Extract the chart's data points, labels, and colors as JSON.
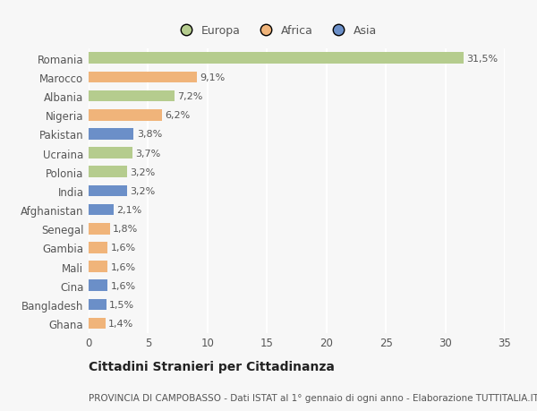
{
  "countries": [
    "Romania",
    "Marocco",
    "Albania",
    "Nigeria",
    "Pakistan",
    "Ucraina",
    "Polonia",
    "India",
    "Afghanistan",
    "Senegal",
    "Gambia",
    "Mali",
    "Cina",
    "Bangladesh",
    "Ghana"
  ],
  "values": [
    31.5,
    9.1,
    7.2,
    6.2,
    3.8,
    3.7,
    3.2,
    3.2,
    2.1,
    1.8,
    1.6,
    1.6,
    1.6,
    1.5,
    1.4
  ],
  "labels": [
    "31,5%",
    "9,1%",
    "7,2%",
    "6,2%",
    "3,8%",
    "3,7%",
    "3,2%",
    "3,2%",
    "2,1%",
    "1,8%",
    "1,6%",
    "1,6%",
    "1,6%",
    "1,5%",
    "1,4%"
  ],
  "continents": [
    "Europa",
    "Africa",
    "Europa",
    "Africa",
    "Asia",
    "Europa",
    "Europa",
    "Asia",
    "Asia",
    "Africa",
    "Africa",
    "Africa",
    "Asia",
    "Asia",
    "Africa"
  ],
  "colors": {
    "Europa": "#b5cc8e",
    "Africa": "#f0b47a",
    "Asia": "#6b8fc8"
  },
  "legend_labels": [
    "Europa",
    "Africa",
    "Asia"
  ],
  "title": "Cittadini Stranieri per Cittadinanza",
  "subtitle": "PROVINCIA DI CAMPOBASSO - Dati ISTAT al 1° gennaio di ogni anno - Elaborazione TUTTITALIA.IT",
  "xlim": [
    0,
    35
  ],
  "xticks": [
    0,
    5,
    10,
    15,
    20,
    25,
    30,
    35
  ],
  "background_color": "#f7f7f7",
  "grid_color": "#ffffff",
  "bar_height": 0.6,
  "label_fontsize": 8,
  "tick_fontsize": 8.5,
  "legend_fontsize": 9,
  "title_fontsize": 10,
  "subtitle_fontsize": 7.5
}
